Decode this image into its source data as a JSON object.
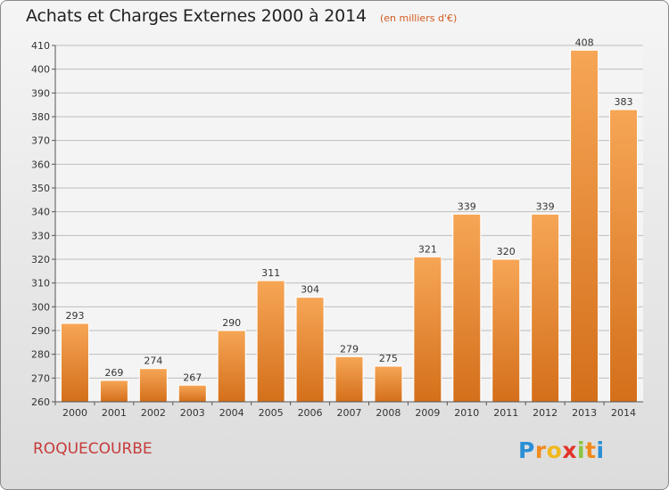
{
  "header": {
    "title": "Achats et Charges Externes 2000 à 2014",
    "unit": "(en milliers d'€)"
  },
  "footer": {
    "commune": "ROQUECOURBE",
    "logo_letters": [
      "P",
      "r",
      "o",
      "x",
      "i",
      "t",
      "i"
    ],
    "logo_colors": [
      "#2b8fd6",
      "#f08a1c",
      "#f0b81c",
      "#e2342a",
      "#8bc53f",
      "#f08a1c",
      "#2b8fd6"
    ]
  },
  "colors": {
    "bar_light": "#f6a656",
    "bar_dark": "#d46f1a",
    "grid": "#bdbdbd",
    "axis": "#555555",
    "label": "#333333"
  },
  "chart_data": {
    "type": "bar",
    "title": "Achats et Charges Externes 2000 à 2014",
    "subtitle": "(en milliers d'€)",
    "xlabel": "",
    "ylabel": "",
    "categories": [
      "2000",
      "2001",
      "2002",
      "2003",
      "2004",
      "2005",
      "2006",
      "2007",
      "2008",
      "2009",
      "2010",
      "2011",
      "2012",
      "2013",
      "2014"
    ],
    "values": [
      293,
      269,
      274,
      267,
      290,
      311,
      304,
      279,
      275,
      321,
      339,
      320,
      339,
      408,
      383
    ],
    "ylim": [
      260,
      410
    ],
    "yticks": [
      260,
      270,
      280,
      290,
      300,
      310,
      320,
      330,
      340,
      350,
      360,
      370,
      380,
      390,
      400,
      410
    ],
    "grid": true
  }
}
